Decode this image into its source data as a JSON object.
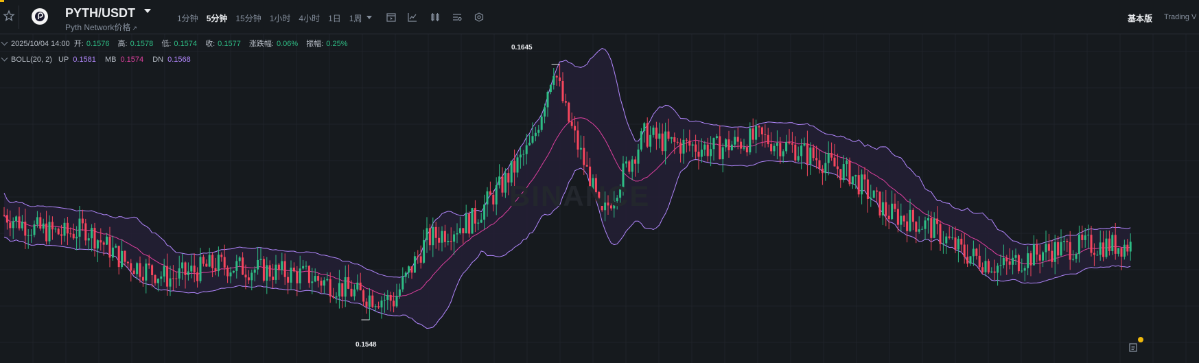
{
  "header": {
    "pair": "PYTH/USDT",
    "subtitle": "Pyth Network价格",
    "subtitle_ext": "↗",
    "intervals": [
      "1分钟",
      "5分钟",
      "15分钟",
      "1小时",
      "4小时",
      "1日",
      "1周"
    ],
    "active_interval": "5分钟",
    "view_basic": "基本版",
    "view_tv": "Trading V"
  },
  "ohlc": {
    "datetime": "2025/10/04 14:00",
    "open_label": "开:",
    "open": "0.1576",
    "high_label": "高:",
    "high": "0.1578",
    "low_label": "低:",
    "low": "0.1574",
    "close_label": "收:",
    "close": "0.1577",
    "change_label": "涨跌幅:",
    "change": "0.06%",
    "amp_label": "振幅:",
    "amp": "0.25%"
  },
  "indicator": {
    "name": "BOLL(20, 2)",
    "up_label": "UP",
    "up": "0.1581",
    "mb_label": "MB",
    "mb": "0.1574",
    "dn_label": "DN",
    "dn": "0.1568"
  },
  "chart_data": {
    "type": "candlestick",
    "series_max_label": "0.1645",
    "series_min_label": "0.1548",
    "watermark": "BINANCE",
    "colors": {
      "up": "#2ebd85",
      "down": "#f6465d",
      "band": "#b388ff",
      "mid": "#e040a0"
    },
    "ylim": [
      0.154,
      0.1651
    ],
    "close_anchors": [
      [
        0,
        0.1589
      ],
      [
        10,
        0.1584
      ],
      [
        20,
        0.1582
      ],
      [
        27,
        0.1584
      ],
      [
        40,
        0.1572
      ],
      [
        55,
        0.1566
      ],
      [
        70,
        0.1571
      ],
      [
        100,
        0.1567
      ],
      [
        118,
        0.156
      ],
      [
        129,
        0.1558
      ],
      [
        140,
        0.158
      ],
      [
        155,
        0.1587
      ],
      [
        165,
        0.16
      ],
      [
        175,
        0.1615
      ],
      [
        182,
        0.1643
      ],
      [
        186,
        0.1626
      ],
      [
        192,
        0.1608
      ],
      [
        198,
        0.1588
      ],
      [
        204,
        0.1602
      ],
      [
        212,
        0.1618
      ],
      [
        220,
        0.1615
      ],
      [
        235,
        0.1613
      ],
      [
        250,
        0.1617
      ],
      [
        262,
        0.1613
      ],
      [
        280,
        0.1604
      ],
      [
        292,
        0.159
      ],
      [
        306,
        0.1585
      ],
      [
        318,
        0.1575
      ],
      [
        330,
        0.157
      ],
      [
        345,
        0.1576
      ],
      [
        360,
        0.1578
      ],
      [
        373,
        0.1578
      ]
    ],
    "candle_count": 374
  },
  "icons": [
    "star-icon",
    "pyth-logo-icon",
    "calendar-icon",
    "line-chart-icon",
    "compare-icon",
    "settings-list-icon",
    "indicator-icon",
    "alert-icon"
  ]
}
